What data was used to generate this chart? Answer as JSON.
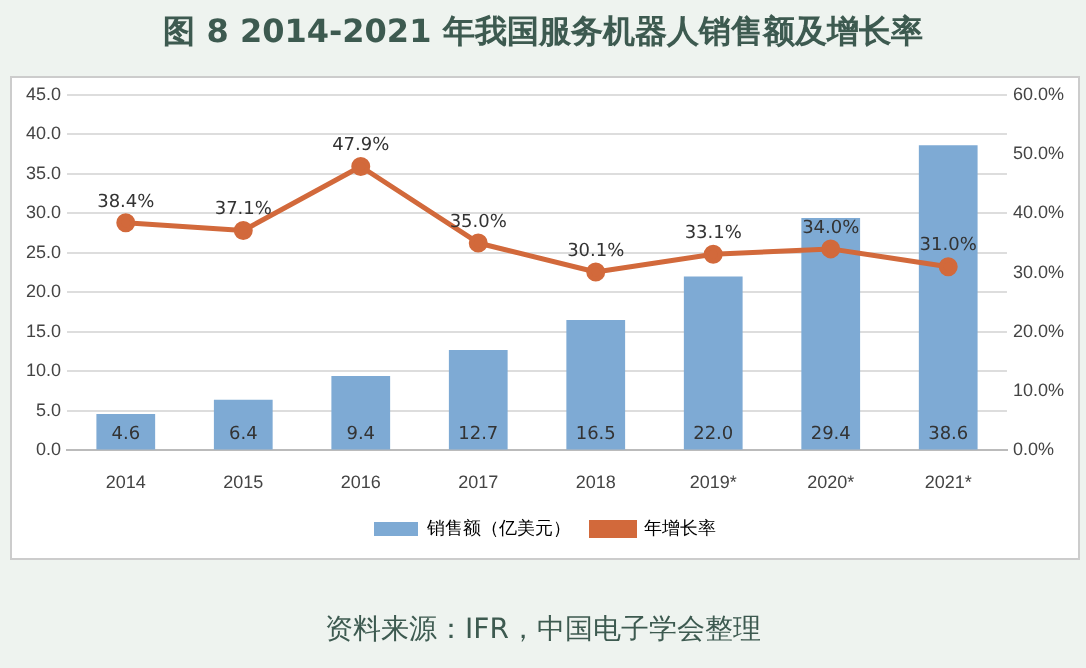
{
  "chart_data": {
    "type": "bar",
    "title": "图 8 2014-2021 年我国服务机器人销售额及增长率",
    "categories": [
      "2014",
      "2015",
      "2016",
      "2017",
      "2018",
      "2019*",
      "2020*",
      "2021*"
    ],
    "series": [
      {
        "name": "销售额（亿美元）",
        "color": "#7eaad4",
        "values": [
          4.6,
          6.4,
          9.4,
          12.7,
          16.5,
          22.0,
          29.4,
          38.6
        ],
        "value_labels": [
          "4.6",
          "6.4",
          "9.4",
          "12.7",
          "16.5",
          "22.0",
          "29.4",
          "38.6"
        ]
      },
      {
        "name": "年增长率",
        "type": "line",
        "axis": "y2",
        "color": "#d2693b",
        "values": [
          38.4,
          37.1,
          47.9,
          35.0,
          30.1,
          33.1,
          34.0,
          31.0
        ],
        "value_labels": [
          "38.4%",
          "37.1%",
          "47.9%",
          "35.0%",
          "30.1%",
          "33.1%",
          "34.0%",
          "31.0%"
        ]
      }
    ],
    "ylim": [
      0,
      45
    ],
    "yticks": [
      {
        "value": 0,
        "label": "0.0"
      },
      {
        "value": 5,
        "label": "5.0"
      },
      {
        "value": 10,
        "label": "10.0"
      },
      {
        "value": 15,
        "label": "15.0"
      },
      {
        "value": 20,
        "label": "20.0"
      },
      {
        "value": 25,
        "label": "25.0"
      },
      {
        "value": 30,
        "label": "30.0"
      },
      {
        "value": 35,
        "label": "35.0"
      },
      {
        "value": 40,
        "label": "40.0"
      },
      {
        "value": 45,
        "label": "45.0"
      }
    ],
    "y2lim": [
      0,
      60
    ],
    "y2ticks": [
      {
        "value": 0,
        "label": "0.0%"
      },
      {
        "value": 10,
        "label": "10.0%"
      },
      {
        "value": 20,
        "label": "20.0%"
      },
      {
        "value": 30,
        "label": "30.0%"
      },
      {
        "value": 40,
        "label": "40.0%"
      },
      {
        "value": 50,
        "label": "50.0%"
      },
      {
        "value": 60,
        "label": "60.0%"
      }
    ],
    "grid": "y",
    "legend": "bottom",
    "marker": "circle",
    "line_style": "solid",
    "annotations": [
      "资料来源：IFR，中国电子学会整理"
    ]
  }
}
